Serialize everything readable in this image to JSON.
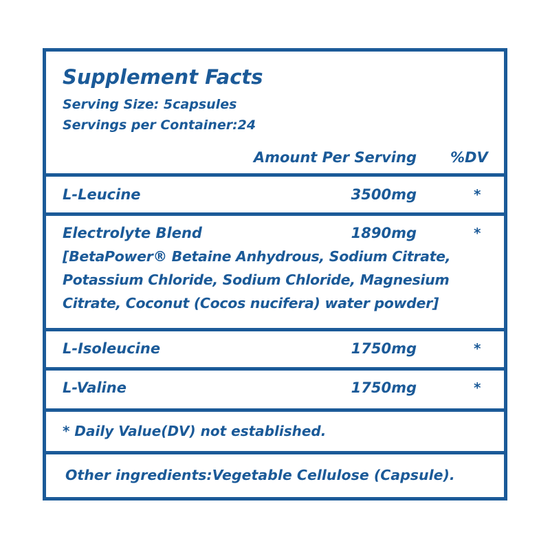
{
  "title": "Supplement Facts",
  "serving_size": "Serving Size: 5capsules",
  "servings_per_container": "Servings per Container:24",
  "header": {
    "amount": "Amount Per Serving",
    "dv": "%DV"
  },
  "rows": [
    {
      "name": "L-Leucine",
      "amount": "3500mg",
      "dv": "*"
    },
    {
      "name": "Electrolyte Blend",
      "amount": "1890mg",
      "dv": "*",
      "detail": [
        "[BetaPower® Betaine Anhydrous, Sodium Citrate,",
        "Potassium Chloride, Sodium Chloride, Magnesium",
        "Citrate, Coconut (Cocos nucifera) water powder]"
      ]
    },
    {
      "name": "L-Isoleucine",
      "amount": "1750mg",
      "dv": "*"
    },
    {
      "name": "L-Valine",
      "amount": "1750mg",
      "dv": "*"
    }
  ],
  "footnote": "* Daily Value(DV) not established.",
  "other_ingredients": "Other ingredients:Vegetable Cellulose (Capsule).",
  "colors": {
    "primary": "#1b5a98",
    "background": "#ffffff"
  }
}
